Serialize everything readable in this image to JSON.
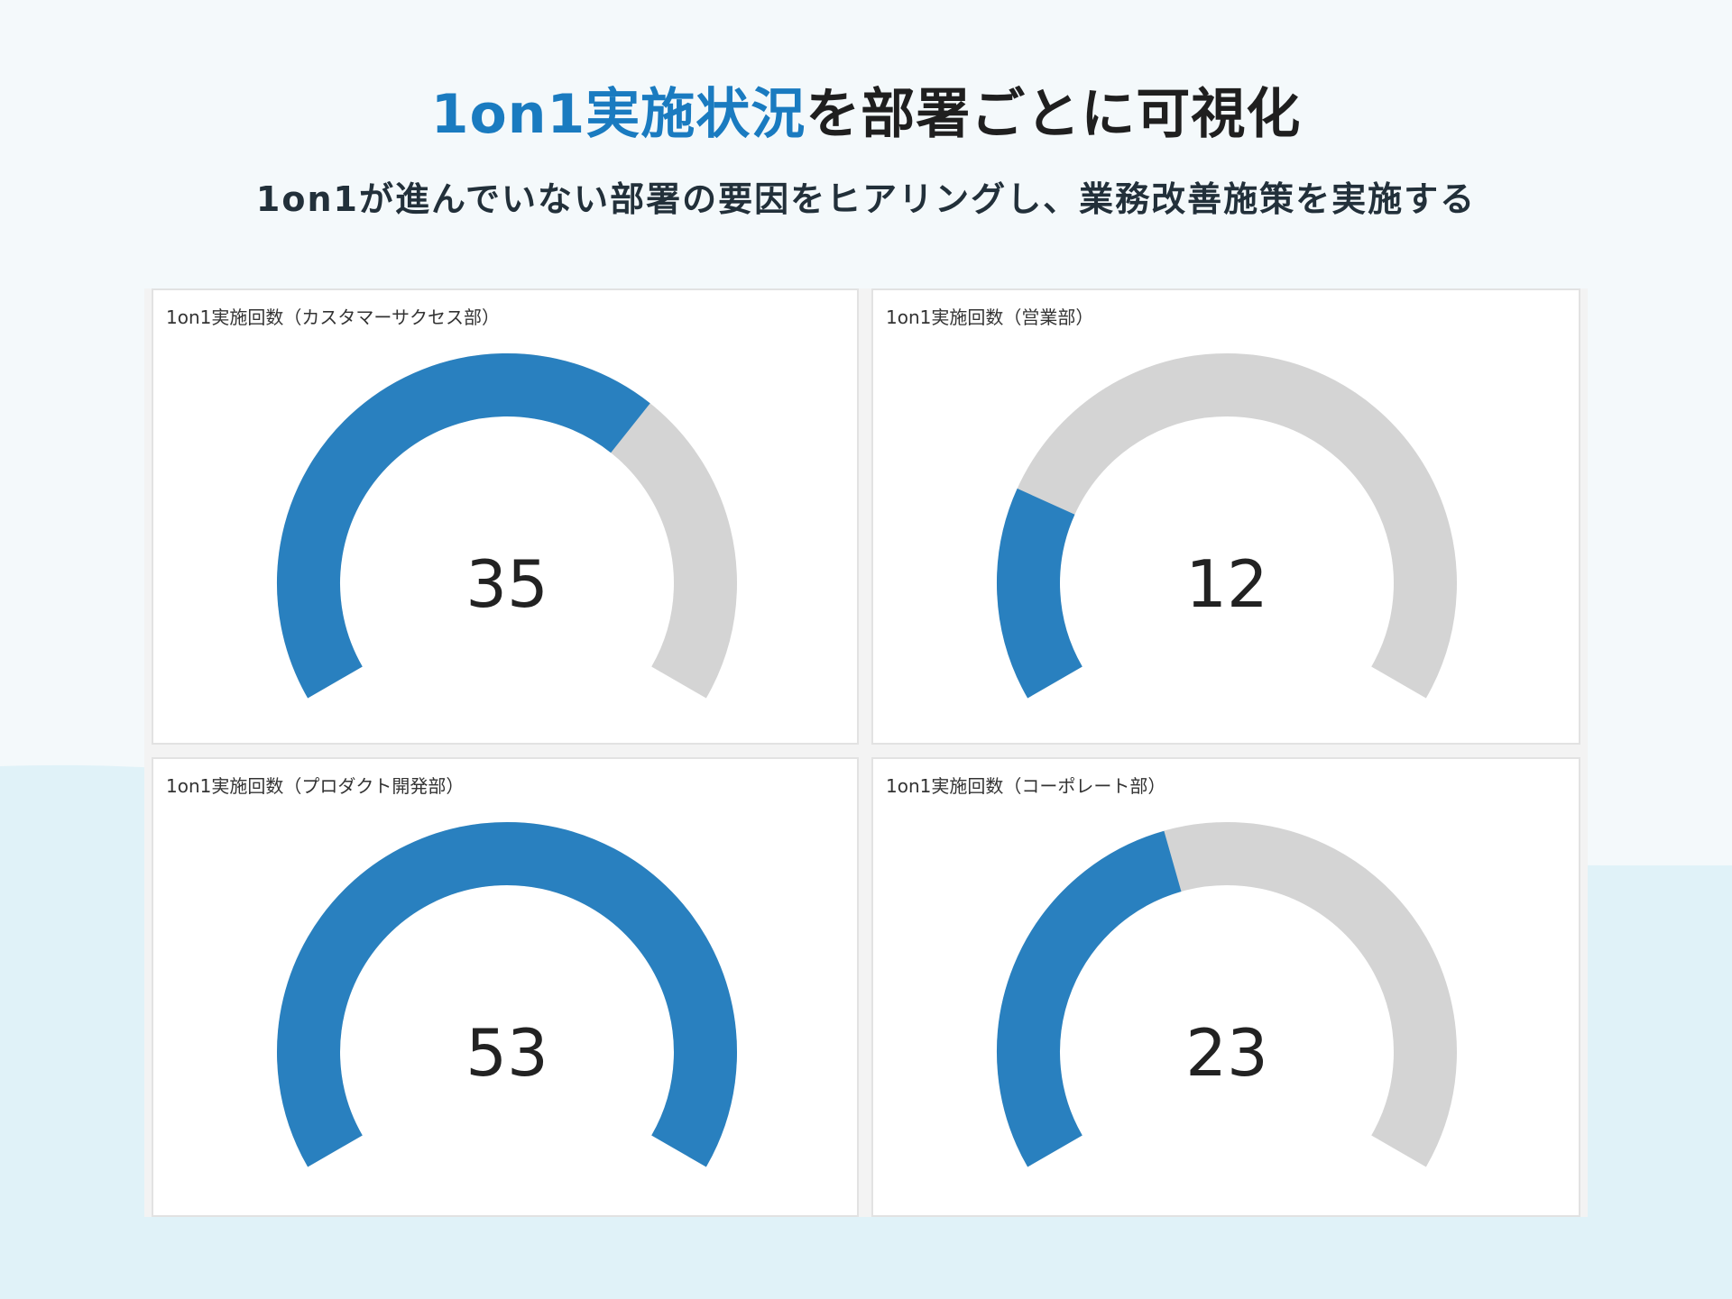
{
  "header": {
    "headline_accent": "1on1実施状況",
    "headline_rest": "を部署ごとに可視化",
    "subhead": "1on1が進んでいない部署の要因をヒアリングし、業務改善施策を実施する"
  },
  "colors": {
    "accent": "#1a7bc0",
    "gauge_fill": "#2980bf",
    "gauge_track": "#d4d4d4"
  },
  "chart_data": [
    {
      "type": "gauge",
      "title": "1on1実施回数（カスタマーサクセス部）",
      "value": 35,
      "range": [
        0,
        53
      ]
    },
    {
      "type": "gauge",
      "title": "1on1実施回数（営業部）",
      "value": 12,
      "range": [
        0,
        53
      ]
    },
    {
      "type": "gauge",
      "title": "1on1実施回数（プロダクト開発部）",
      "value": 53,
      "range": [
        0,
        53
      ]
    },
    {
      "type": "gauge",
      "title": "1on1実施回数（コーポレート部）",
      "value": 23,
      "range": [
        0,
        53
      ]
    }
  ]
}
